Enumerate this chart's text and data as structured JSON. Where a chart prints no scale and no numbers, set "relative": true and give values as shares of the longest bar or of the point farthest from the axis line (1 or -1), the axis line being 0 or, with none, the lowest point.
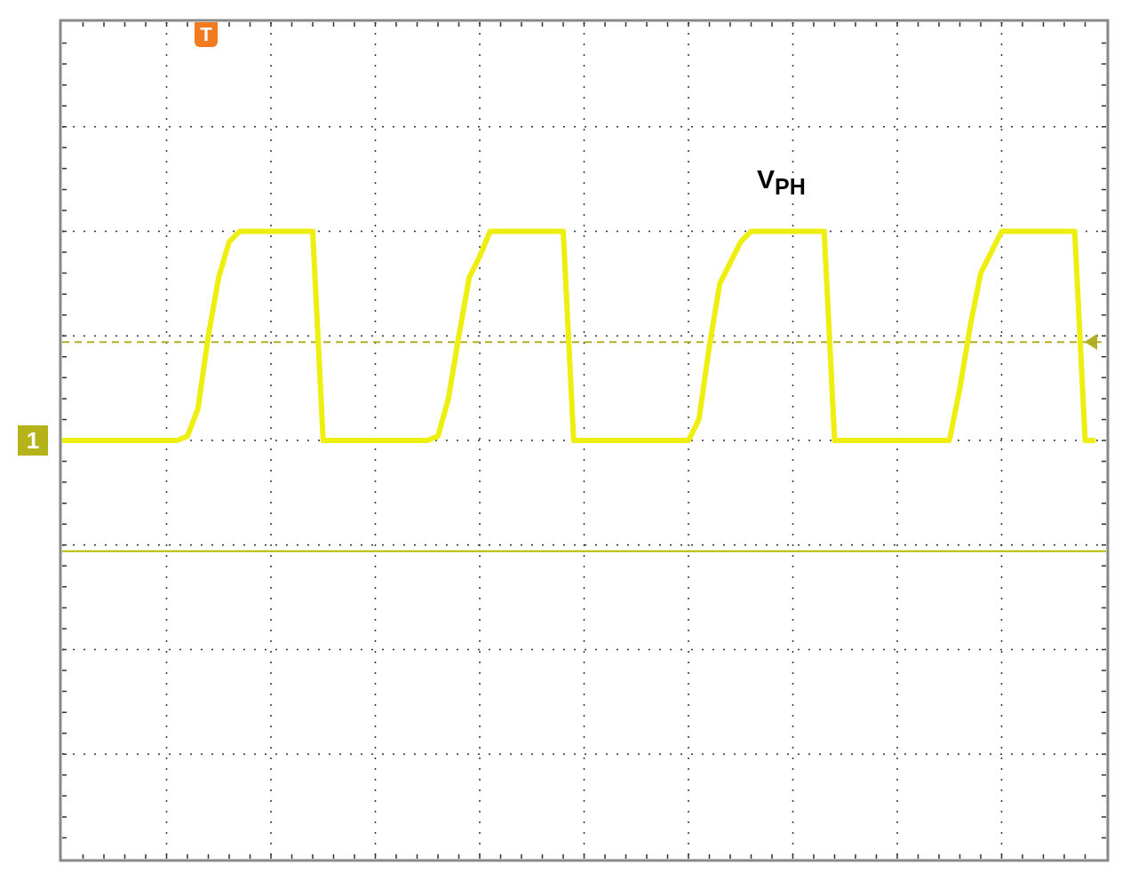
{
  "chart_data": {
    "type": "line",
    "relative": true,
    "grid": true,
    "legend": false,
    "marker": "none",
    "line_style": "solid",
    "categories": [
      null,
      null,
      null,
      null,
      null,
      null,
      null,
      null,
      null,
      null,
      null,
      null,
      null,
      null,
      null,
      null,
      null,
      null,
      null,
      null,
      null,
      null,
      null,
      null,
      null,
      null,
      null,
      null,
      null,
      null,
      null,
      null,
      null,
      null,
      null,
      null,
      null,
      null,
      null,
      null,
      null,
      null,
      null,
      null,
      null,
      null,
      null,
      null,
      null,
      null,
      null,
      null,
      null,
      null,
      null,
      null,
      null,
      null,
      null,
      null,
      null,
      null,
      null,
      null,
      null,
      null,
      null,
      null,
      null,
      null,
      null,
      null,
      null,
      null,
      null,
      null,
      null,
      null,
      null,
      null,
      null,
      null,
      null,
      null,
      null,
      null,
      null,
      null,
      null,
      null,
      null,
      null,
      null,
      null,
      null,
      null,
      null,
      null,
      null,
      null,
      null
    ],
    "series": [
      {
        "color": "#eeee10",
        "values": [
          0,
          0,
          0,
          0,
          0,
          0,
          0,
          0,
          0,
          0,
          0,
          0,
          0.02,
          0.15,
          0.5,
          0.78,
          0.95,
          1,
          1,
          1,
          1,
          1,
          1,
          1,
          1,
          0,
          0,
          0,
          0,
          0,
          0,
          0,
          0,
          0,
          0,
          0,
          0.02,
          0.2,
          0.5,
          0.78,
          0.88,
          1,
          1,
          1,
          1,
          1,
          1,
          1,
          1,
          0,
          0,
          0,
          0,
          0,
          0,
          0,
          0,
          0,
          0,
          0,
          0,
          0.1,
          0.45,
          0.75,
          0.85,
          0.95,
          1,
          1,
          1,
          1,
          1,
          1,
          1,
          1,
          0,
          0,
          0,
          0,
          0,
          0,
          0,
          0,
          0,
          0,
          0,
          0,
          0.25,
          0.55,
          0.8,
          0.9,
          1,
          1,
          1,
          1,
          1,
          1,
          1,
          1,
          0,
          0,
          null
        ]
      }
    ],
    "ref_lines": [
      {
        "axis": "y",
        "value": 0.47,
        "color": "#b0b020",
        "line_style": "dashed"
      },
      {
        "axis": "y",
        "value": -0.53,
        "color": "#b8b800",
        "line_style": "solid"
      }
    ],
    "annotations": [
      "V$_{PH}$",
      "1",
      "T"
    ]
  }
}
